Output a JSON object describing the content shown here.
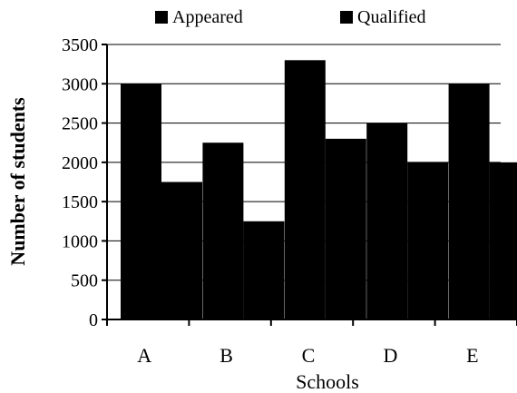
{
  "chart_data": {
    "type": "bar",
    "categories": [
      "A",
      "B",
      "C",
      "D",
      "E"
    ],
    "series": [
      {
        "name": "Appeared",
        "values": [
          3000,
          2250,
          3300,
          2500,
          3000
        ]
      },
      {
        "name": "Qualified",
        "values": [
          1750,
          1250,
          2300,
          2000,
          2000
        ]
      }
    ],
    "xlabel": "Schools",
    "ylabel": "Number of students",
    "ylim": [
      0,
      3500
    ],
    "yticks": [
      0,
      500,
      1000,
      1500,
      2000,
      2500,
      3000,
      3500
    ],
    "grid": "horizontal",
    "legend": "top",
    "colors": {
      "appeared": "#000000",
      "qualified": "#000000"
    }
  }
}
